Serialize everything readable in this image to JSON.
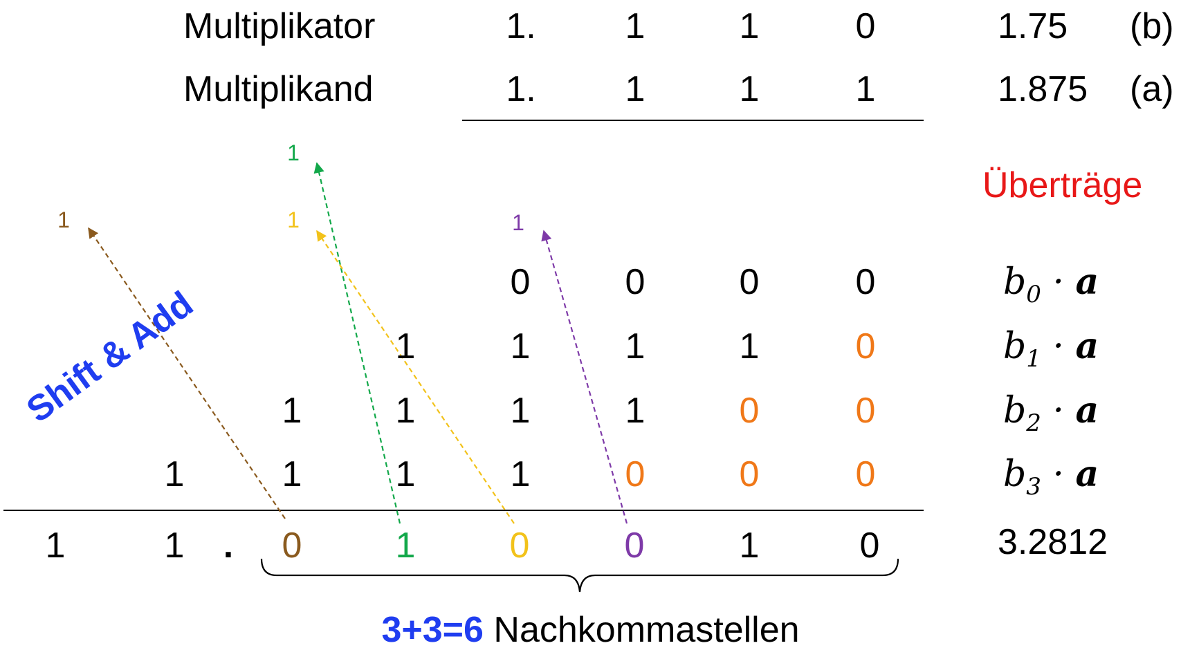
{
  "colors": {
    "black": "#000000",
    "orange": "#f07818",
    "brown": "#8a5a1e",
    "green": "#12a84a",
    "yellow": "#f2c21a",
    "purple": "#7e3aa8",
    "red": "#e81818",
    "blue": "#1f3df0"
  },
  "header": {
    "multiplier": {
      "label": "Multiplikator",
      "digits": [
        "1.",
        "1",
        "1",
        "0"
      ],
      "value": "1.75",
      "tag": "(b)"
    },
    "multiplicand": {
      "label": "Multiplikand",
      "digits": [
        "1.",
        "1",
        "1",
        "1"
      ],
      "value": "1.875",
      "tag": "(a)"
    }
  },
  "carries_label": "Überträge",
  "shift_add_label": "Shift & Add",
  "partial_products": [
    {
      "digits": [
        "0",
        "0",
        "0",
        "0"
      ],
      "padding_zeros": 0,
      "term": {
        "b": "b",
        "sub": "0",
        "a": "a"
      }
    },
    {
      "digits": [
        "1",
        "1",
        "1",
        "1"
      ],
      "padding_zeros": 1,
      "term": {
        "b": "b",
        "sub": "1",
        "a": "a"
      }
    },
    {
      "digits": [
        "1",
        "1",
        "1",
        "1"
      ],
      "padding_zeros": 2,
      "term": {
        "b": "b",
        "sub": "2",
        "a": "a"
      }
    },
    {
      "digits": [
        "1",
        "1",
        "1",
        "1"
      ],
      "padding_zeros": 3,
      "term": {
        "b": "b",
        "sub": "3",
        "a": "a"
      }
    }
  ],
  "padding_digit": "0",
  "result": {
    "integer_digits": [
      "1",
      "1"
    ],
    "point": ".",
    "fraction_digits": [
      "0",
      "1",
      "0",
      "0",
      "1",
      "0"
    ],
    "value": "3.2812"
  },
  "carries": [
    {
      "text": "1",
      "color_key": "brown"
    },
    {
      "text": "1",
      "color_key": "green"
    },
    {
      "text": "1",
      "color_key": "yellow"
    },
    {
      "text": "1",
      "color_key": "purple"
    }
  ],
  "footer": {
    "highlight": "3+3=6",
    "text": " Nachkommastellen"
  }
}
